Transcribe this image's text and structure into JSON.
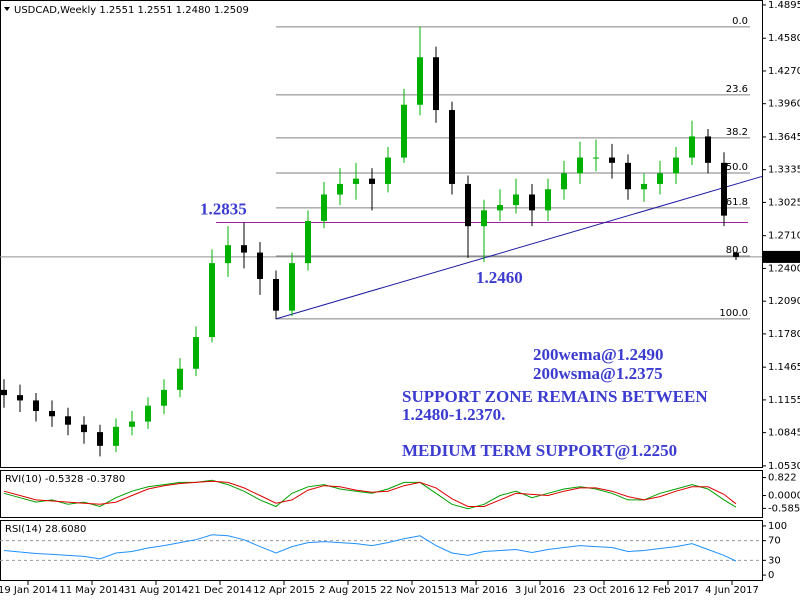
{
  "chart_data": {
    "type": "candlestick",
    "title": "USDCAD,Weekly  1.2551 1.2551 1.2480 1.2509",
    "x": [
      0,
      4,
      8,
      12,
      16,
      20,
      24,
      28,
      32,
      36,
      40,
      44,
      48,
      52,
      56,
      60,
      64,
      68,
      72,
      76,
      80,
      84,
      88,
      92,
      96,
      100,
      104,
      108,
      112,
      116,
      120,
      124,
      128,
      132,
      136,
      140,
      144,
      148,
      152,
      156,
      160,
      164,
      168,
      172,
      176,
      180,
      183
    ],
    "open": [
      1.125,
      1.12,
      1.115,
      1.105,
      1.1,
      1.092,
      1.085,
      1.072,
      1.09,
      1.095,
      1.11,
      1.125,
      1.145,
      1.175,
      1.245,
      1.262,
      1.255,
      1.23,
      1.2,
      1.245,
      1.285,
      1.31,
      1.32,
      1.325,
      1.32,
      1.345,
      1.395,
      1.44,
      1.39,
      1.32,
      1.28,
      1.295,
      1.3,
      1.31,
      1.295,
      1.315,
      1.33,
      1.345,
      1.345,
      1.34,
      1.315,
      1.32,
      1.33,
      1.345,
      1.365,
      1.34,
      1.2551
    ],
    "high": [
      1.135,
      1.13,
      1.122,
      1.115,
      1.108,
      1.1,
      1.092,
      1.098,
      1.105,
      1.118,
      1.135,
      1.155,
      1.185,
      1.258,
      1.28,
      1.2835,
      1.265,
      1.238,
      1.255,
      1.295,
      1.322,
      1.335,
      1.34,
      1.335,
      1.355,
      1.41,
      1.469,
      1.45,
      1.398,
      1.328,
      1.305,
      1.315,
      1.325,
      1.32,
      1.325,
      1.342,
      1.36,
      1.362,
      1.358,
      1.348,
      1.33,
      1.342,
      1.355,
      1.38,
      1.372,
      1.35,
      1.2551
    ],
    "low": [
      1.108,
      1.104,
      1.095,
      1.09,
      1.082,
      1.074,
      1.062,
      1.066,
      1.082,
      1.088,
      1.102,
      1.118,
      1.138,
      1.17,
      1.232,
      1.24,
      1.215,
      1.192,
      1.195,
      1.238,
      1.278,
      1.3,
      1.305,
      1.295,
      1.312,
      1.34,
      1.385,
      1.378,
      1.31,
      1.25,
      1.246,
      1.285,
      1.292,
      1.28,
      1.285,
      1.305,
      1.32,
      1.332,
      1.325,
      1.305,
      1.303,
      1.31,
      1.32,
      1.338,
      1.33,
      1.28,
      1.248
    ],
    "close": [
      1.12,
      1.115,
      1.105,
      1.1,
      1.092,
      1.085,
      1.072,
      1.09,
      1.095,
      1.11,
      1.125,
      1.145,
      1.175,
      1.245,
      1.262,
      1.255,
      1.23,
      1.2,
      1.245,
      1.285,
      1.31,
      1.32,
      1.325,
      1.32,
      1.345,
      1.395,
      1.44,
      1.39,
      1.32,
      1.28,
      1.295,
      1.3,
      1.31,
      1.295,
      1.315,
      1.33,
      1.345,
      1.345,
      1.34,
      1.315,
      1.32,
      1.33,
      1.345,
      1.365,
      1.34,
      1.29,
      1.2509
    ],
    "colors": {
      "up": "#00b000",
      "down": "#000000"
    },
    "xlim": [
      -1,
      189.5
    ],
    "xticks": [
      {
        "value": 6,
        "label": "19 Jan 2014"
      },
      {
        "value": 22,
        "label": "11 May 2014"
      },
      {
        "value": 38,
        "label": "31 Aug 2014"
      },
      {
        "value": 54,
        "label": "21 Dec 2014"
      },
      {
        "value": 70,
        "label": "12 Apr 2015"
      },
      {
        "value": 86,
        "label": "2 Aug 2015"
      },
      {
        "value": 102,
        "label": "22 Nov 2015"
      },
      {
        "value": 118,
        "label": "13 Mar 2016"
      },
      {
        "value": 134,
        "label": "3 Jul 2016"
      },
      {
        "value": 150,
        "label": "23 Oct 2016"
      },
      {
        "value": 166,
        "label": "12 Feb 2017"
      },
      {
        "value": 182,
        "label": "4 Jun 2017"
      }
    ],
    "ylim": [
      1.051,
      1.4942
    ],
    "yticks": [
      1.4895,
      {
        "value": 1.458,
        "label": "1.4580"
      },
      {
        "value": 1.427,
        "label": "1.4270"
      },
      {
        "value": 1.396,
        "label": "1.3960"
      },
      1.3645,
      1.3335,
      1.3025,
      {
        "value": 1.271,
        "label": "1.2710"
      },
      {
        "value": 1.24,
        "label": "1.2400"
      },
      {
        "value": 1.209,
        "label": "1.2090"
      },
      {
        "value": 1.178,
        "label": "1.1780"
      },
      1.1465,
      1.1155,
      1.0845,
      {
        "value": 1.053,
        "label": "1.0530"
      }
    ],
    "last_price": 1.2509,
    "resistance": {
      "value": 1.2835,
      "x": [
        53,
        186
      ],
      "color": "#a020a0"
    },
    "support_low": {
      "value": 1.246,
      "label": "1.2460"
    },
    "trendline": {
      "x": [
        68,
        189.5
      ],
      "y": [
        1.1922,
        1.3271
      ],
      "color": "#1a1aa0"
    },
    "fib": {
      "x": [
        68,
        186.5
      ],
      "levels": [
        {
          "value": 1.4687,
          "label": "0.0"
        },
        {
          "value": 1.4043,
          "label": "23.6"
        },
        {
          "value": 1.3636,
          "label": "38.2"
        },
        {
          "value": 1.3304,
          "label": "50.0"
        },
        {
          "value": 1.2973,
          "label": "61.8"
        },
        {
          "value": 1.2518,
          "label": "80.0"
        },
        {
          "value": 1.1922,
          "label": "100.0"
        }
      ]
    },
    "annotations": [
      "200wema@1.2490",
      "200wsma@1.2375",
      "SUPPORT ZONE REMAINS BETWEEN",
      "1.2480-1.2370.",
      "MEDIUM TERM SUPPORT@1.2250"
    ],
    "indicators": [
      {
        "type": "line",
        "title": "RVI(10) -0.5328 -0.3780",
        "ylim": [
          -0.98,
          1.12
        ],
        "yticks": [
          0.822,
          {
            "value": 0,
            "label": "0.0000"
          },
          -0.5859
        ],
        "series": [
          {
            "color": "#00a000",
            "values": [
              0.1,
              -0.1,
              -0.3,
              -0.2,
              -0.4,
              -0.3,
              -0.5,
              -0.1,
              0.2,
              0.4,
              0.5,
              0.6,
              0.6,
              0.7,
              0.5,
              0.2,
              -0.2,
              -0.5,
              0.1,
              0.4,
              0.5,
              0.3,
              0.2,
              0.1,
              0.3,
              0.6,
              0.6,
              0.1,
              -0.4,
              -0.6,
              -0.4,
              0.0,
              0.2,
              -0.1,
              0.1,
              0.3,
              0.4,
              0.3,
              0.1,
              -0.2,
              -0.2,
              0.1,
              0.3,
              0.5,
              0.3,
              -0.2,
              -0.5328
            ]
          },
          {
            "color": "#e00000",
            "values": [
              0.2,
              0.0,
              -0.2,
              -0.25,
              -0.3,
              -0.35,
              -0.4,
              -0.3,
              0.0,
              0.3,
              0.45,
              0.55,
              0.6,
              0.65,
              0.6,
              0.35,
              0.0,
              -0.35,
              -0.2,
              0.25,
              0.45,
              0.4,
              0.25,
              0.15,
              0.2,
              0.45,
              0.6,
              0.35,
              -0.15,
              -0.5,
              -0.5,
              -0.2,
              0.1,
              0.05,
              0.0,
              0.2,
              0.35,
              0.35,
              0.2,
              -0.05,
              -0.2,
              -0.05,
              0.2,
              0.4,
              0.4,
              0.05,
              -0.378
            ]
          }
        ]
      },
      {
        "type": "line",
        "title": "RSI(14) 28.6080",
        "ylim": [
          -10,
          110
        ],
        "yticks": [
          100,
          70,
          30,
          0
        ],
        "levels": [
          70,
          30
        ],
        "series": [
          {
            "color": "#1e90ff",
            "values": [
              50,
              47,
              44,
              42,
              40,
              38,
              33,
              45,
              48,
              55,
              60,
              66,
              72,
              82,
              80,
              72,
              58,
              45,
              58,
              66,
              68,
              66,
              64,
              60,
              66,
              74,
              80,
              60,
              45,
              40,
              48,
              50,
              52,
              46,
              52,
              56,
              60,
              58,
              56,
              48,
              50,
              54,
              58,
              64,
              52,
              40,
              28.608
            ]
          }
        ]
      }
    ]
  }
}
